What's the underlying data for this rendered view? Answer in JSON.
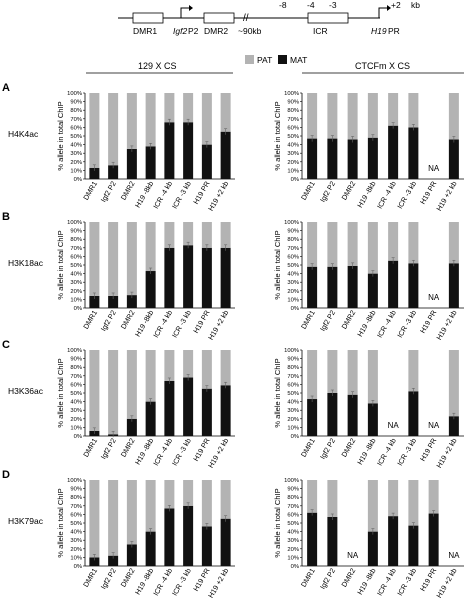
{
  "map": {
    "dmr1": "DMR1",
    "igf2_it": "Igf2",
    "igf2_p2": "P2",
    "dmr2": "DMR2",
    "break": "//",
    "dist_90": "~90kb",
    "pos_m8": "-8",
    "pos_m4": "-4",
    "pos_m3": "-3",
    "icr": "ICR",
    "pos_p2": "+2",
    "kb": "kb",
    "h19_it": "H19",
    "h19_pr": "PR"
  },
  "legend": {
    "pat": "PAT",
    "mat": "MAT"
  },
  "colors": {
    "pat": "#b3b3b3",
    "mat": "#111111"
  },
  "groups": [
    "129 X CS",
    "CTCFm X CS"
  ],
  "axis": {
    "ylabel": "% allele in total ChIP",
    "ticks": [
      "0%",
      "10%",
      "20%",
      "30%",
      "40%",
      "50%",
      "60%",
      "70%",
      "80%",
      "90%",
      "100%"
    ],
    "na": "NA"
  },
  "categories": [
    "DMR1",
    "Igf2 P2",
    "DMR2",
    "H19 -8kb",
    "ICR -4 kb",
    "ICR -3 kb",
    "H19 PR",
    "H19 +2 kb"
  ],
  "panels": [
    {
      "letter": "A",
      "mark": "H4K4ac"
    },
    {
      "letter": "B",
      "mark": "H3K18ac"
    },
    {
      "letter": "C",
      "mark": "H3K36ac"
    },
    {
      "letter": "D",
      "mark": "H3K79ac"
    }
  ],
  "chart_data": [
    {
      "type": "bar",
      "stacked": true,
      "panel": "A",
      "group": "129 X CS",
      "ylabel": "% allele in total ChIP",
      "ylim": [
        0,
        100
      ],
      "series": [
        {
          "name": "MAT",
          "values": [
            13,
            16,
            35,
            38,
            66,
            66,
            40,
            55
          ]
        },
        {
          "name": "PAT",
          "values": [
            87,
            84,
            65,
            62,
            34,
            34,
            60,
            45
          ]
        }
      ],
      "na": []
    },
    {
      "type": "bar",
      "stacked": true,
      "panel": "A",
      "group": "CTCFm X CS",
      "ylabel": "% allele in total ChIP",
      "ylim": [
        0,
        100
      ],
      "series": [
        {
          "name": "MAT",
          "values": [
            47,
            47,
            46,
            48,
            62,
            60,
            null,
            46
          ]
        },
        {
          "name": "PAT",
          "values": [
            53,
            53,
            54,
            52,
            38,
            40,
            null,
            54
          ]
        }
      ],
      "na": [
        "H19 PR"
      ]
    },
    {
      "type": "bar",
      "stacked": true,
      "panel": "B",
      "group": "129 X CS",
      "ylabel": "% allele in total ChIP",
      "ylim": [
        0,
        100
      ],
      "series": [
        {
          "name": "MAT",
          "values": [
            14,
            14,
            15,
            43,
            70,
            73,
            70,
            70
          ]
        },
        {
          "name": "PAT",
          "values": [
            86,
            86,
            85,
            57,
            30,
            27,
            30,
            30
          ]
        }
      ],
      "na": []
    },
    {
      "type": "bar",
      "stacked": true,
      "panel": "B",
      "group": "CTCFm X CS",
      "ylabel": "% allele in total ChIP",
      "ylim": [
        0,
        100
      ],
      "series": [
        {
          "name": "MAT",
          "values": [
            48,
            48,
            49,
            40,
            55,
            52,
            null,
            52
          ]
        },
        {
          "name": "PAT",
          "values": [
            52,
            52,
            51,
            60,
            45,
            48,
            null,
            48
          ]
        }
      ],
      "na": [
        "H19 PR"
      ]
    },
    {
      "type": "bar",
      "stacked": true,
      "panel": "C",
      "group": "129 X CS",
      "ylabel": "% allele in total ChIP",
      "ylim": [
        0,
        100
      ],
      "series": [
        {
          "name": "MAT",
          "values": [
            6,
            2,
            20,
            40,
            64,
            68,
            55,
            59
          ]
        },
        {
          "name": "PAT",
          "values": [
            94,
            98,
            80,
            60,
            36,
            32,
            45,
            41
          ]
        }
      ],
      "na": []
    },
    {
      "type": "bar",
      "stacked": true,
      "panel": "C",
      "group": "CTCFm X CS",
      "ylabel": "% allele in total ChIP",
      "ylim": [
        0,
        100
      ],
      "series": [
        {
          "name": "MAT",
          "values": [
            43,
            50,
            48,
            38,
            null,
            52,
            null,
            23
          ]
        },
        {
          "name": "PAT",
          "values": [
            57,
            50,
            52,
            62,
            null,
            48,
            null,
            77
          ]
        }
      ],
      "na": [
        "ICR -4 kb",
        "H19 PR"
      ]
    },
    {
      "type": "bar",
      "stacked": true,
      "panel": "D",
      "group": "129 X CS",
      "ylabel": "% allele in total ChIP",
      "ylim": [
        0,
        100
      ],
      "series": [
        {
          "name": "MAT",
          "values": [
            10,
            12,
            25,
            40,
            67,
            70,
            46,
            55
          ]
        },
        {
          "name": "PAT",
          "values": [
            90,
            88,
            75,
            60,
            33,
            30,
            54,
            45
          ]
        }
      ],
      "na": []
    },
    {
      "type": "bar",
      "stacked": true,
      "panel": "D",
      "group": "CTCFm X CS",
      "ylabel": "% allele in total ChIP",
      "ylim": [
        0,
        100
      ],
      "series": [
        {
          "name": "MAT",
          "values": [
            62,
            57,
            null,
            40,
            58,
            47,
            61,
            null
          ]
        },
        {
          "name": "PAT",
          "values": [
            38,
            43,
            null,
            60,
            42,
            53,
            39,
            null
          ]
        }
      ],
      "na": [
        "DMR2",
        "H19 +2 kb"
      ]
    }
  ]
}
